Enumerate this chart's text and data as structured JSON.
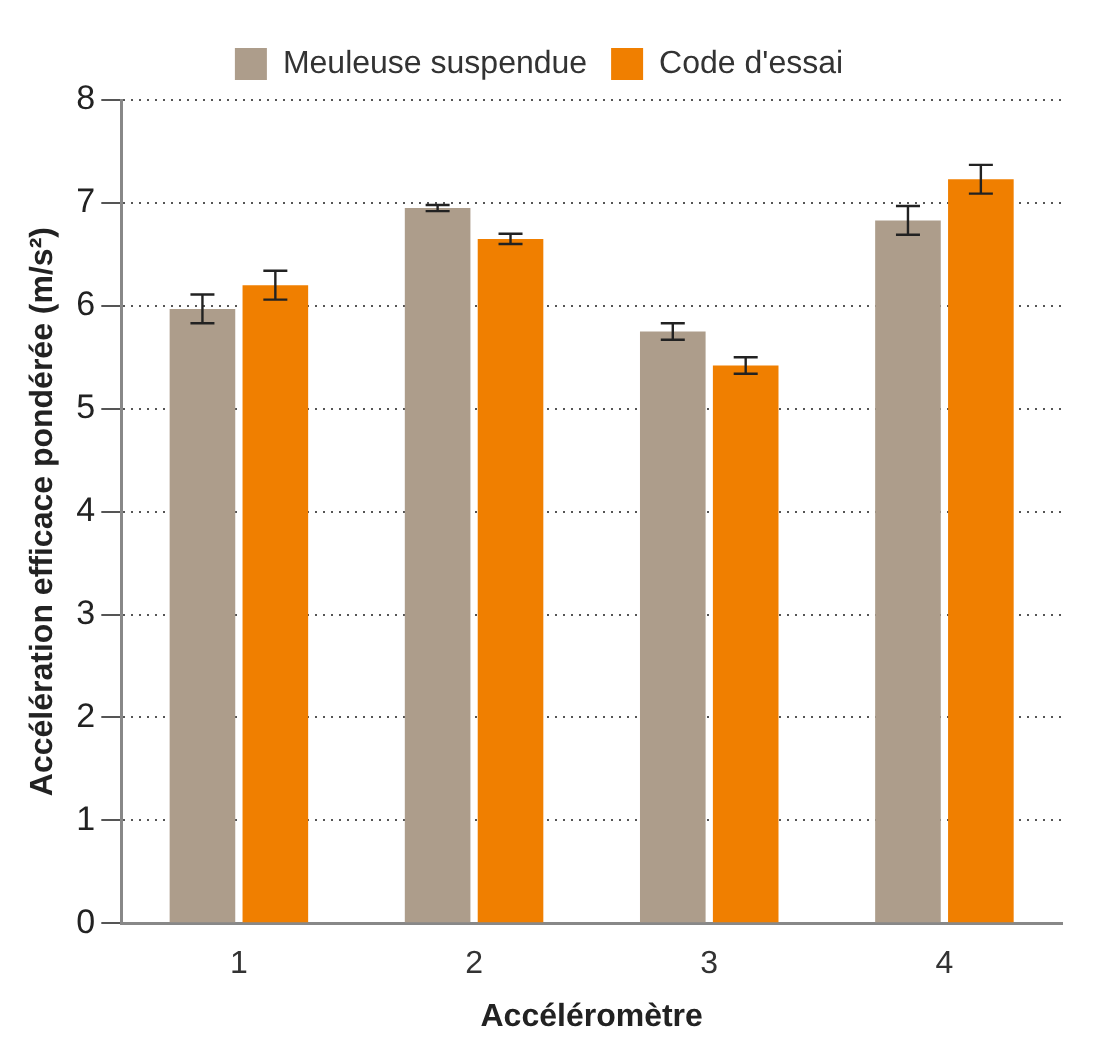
{
  "chart_data": {
    "type": "bar",
    "xlabel": "Accéléromètre",
    "ylabel": "Accélération efficace pondérée (m/s²)",
    "categories": [
      "1",
      "2",
      "3",
      "4"
    ],
    "series": [
      {
        "name": "Meuleuse suspendue",
        "color": "#ad9d8b",
        "values": [
          5.97,
          6.95,
          5.75,
          6.83
        ],
        "errors": [
          0.14,
          0.03,
          0.08,
          0.14
        ]
      },
      {
        "name": "Code d'essai",
        "color": "#f07f00",
        "values": [
          6.2,
          6.65,
          5.42,
          7.23
        ],
        "errors": [
          0.14,
          0.05,
          0.08,
          0.14
        ]
      }
    ],
    "ylim": [
      0,
      8
    ],
    "yticks": [
      0,
      1,
      2,
      3,
      4,
      5,
      6,
      7,
      8
    ],
    "grid": "y",
    "legend": "top"
  }
}
